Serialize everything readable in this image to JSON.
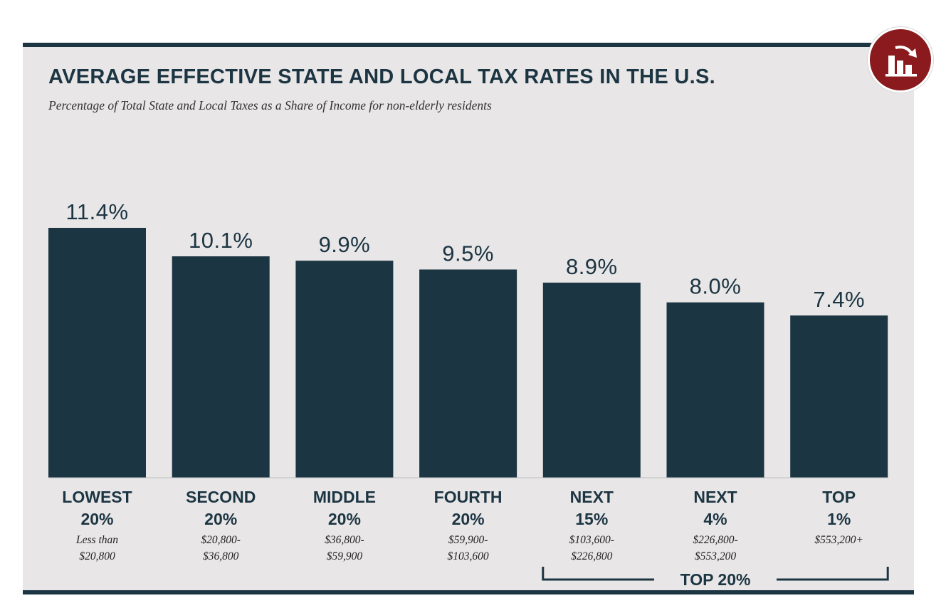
{
  "title": "AVERAGE EFFECTIVE STATE AND LOCAL TAX RATES IN THE U.S.",
  "subtitle": "Percentage of Total State and Local Taxes as a Share of Income for non-elderly residents",
  "badge_icon": "bar-chart-arrow-icon",
  "colors": {
    "bar": "#1c3542",
    "panel": "#e8e6e7",
    "badge": "#8a1a1d",
    "text": "#1c3542"
  },
  "chart_data": {
    "type": "bar",
    "title": "AVERAGE EFFECTIVE STATE AND LOCAL TAX RATES IN THE U.S.",
    "subtitle": "Percentage of Total State and Local Taxes as a Share of Income for non-elderly residents",
    "xlabel": "",
    "ylabel": "",
    "ylim": [
      0,
      12
    ],
    "grid": false,
    "value_suffix": "%",
    "categories": [
      "LOWEST 20%",
      "SECOND 20%",
      "MIDDLE 20%",
      "FOURTH 20%",
      "NEXT 15%",
      "NEXT 4%",
      "TOP 1%"
    ],
    "category_lines": [
      [
        "LOWEST",
        "20%"
      ],
      [
        "SECOND",
        "20%"
      ],
      [
        "MIDDLE",
        "20%"
      ],
      [
        "FOURTH",
        "20%"
      ],
      [
        "NEXT",
        "15%"
      ],
      [
        "NEXT",
        "4%"
      ],
      [
        "TOP",
        "1%"
      ]
    ],
    "income_ranges": [
      [
        "Less than",
        "$20,800"
      ],
      [
        "$20,800-",
        "$36,800"
      ],
      [
        "$36,800-",
        "$59,900"
      ],
      [
        "$59,900-",
        "$103,600"
      ],
      [
        "$103,600-",
        "$226,800"
      ],
      [
        "$226,800-",
        "$553,200"
      ],
      [
        "$553,200+"
      ]
    ],
    "values": [
      11.4,
      10.1,
      9.9,
      9.5,
      8.9,
      8.0,
      7.4
    ],
    "value_labels": [
      "11.4%",
      "10.1%",
      "9.9%",
      "9.5%",
      "8.9%",
      "8.0%",
      "7.4%"
    ],
    "group_annotation": {
      "label": "TOP 20%",
      "spans_categories": [
        "NEXT 15%",
        "NEXT 4%",
        "TOP 1%"
      ]
    }
  }
}
